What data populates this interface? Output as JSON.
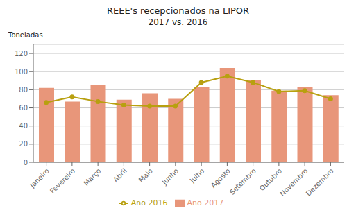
{
  "chart_data": {
    "type": "bar",
    "title": "REEE's recepcionados na LIPOR",
    "subtitle": "2017 vs. 2016",
    "ylabel": "Toneladas",
    "categories": [
      "Janeiro",
      "Fevereiro",
      "Março",
      "Abril",
      "Maio",
      "Junho",
      "Julho",
      "Agosto",
      "Setembro",
      "Outubro",
      "Novembro",
      "Dezembro"
    ],
    "series": [
      {
        "name": "Ano 2017",
        "type": "bar",
        "color": "#E8967A",
        "values": [
          82,
          67,
          85,
          69,
          76,
          70,
          83,
          104,
          91,
          79,
          83,
          74
        ]
      },
      {
        "name": "Ano 2016",
        "type": "line",
        "color": "#B8A010",
        "marker": "circle",
        "values": [
          66,
          72,
          67,
          63,
          62,
          62,
          88,
          95,
          88,
          78,
          79,
          70
        ]
      }
    ],
    "ylim": [
      0,
      130
    ],
    "yticks": [
      0,
      20,
      40,
      60,
      80,
      100,
      120
    ],
    "grid": true,
    "legend": "bottom"
  }
}
